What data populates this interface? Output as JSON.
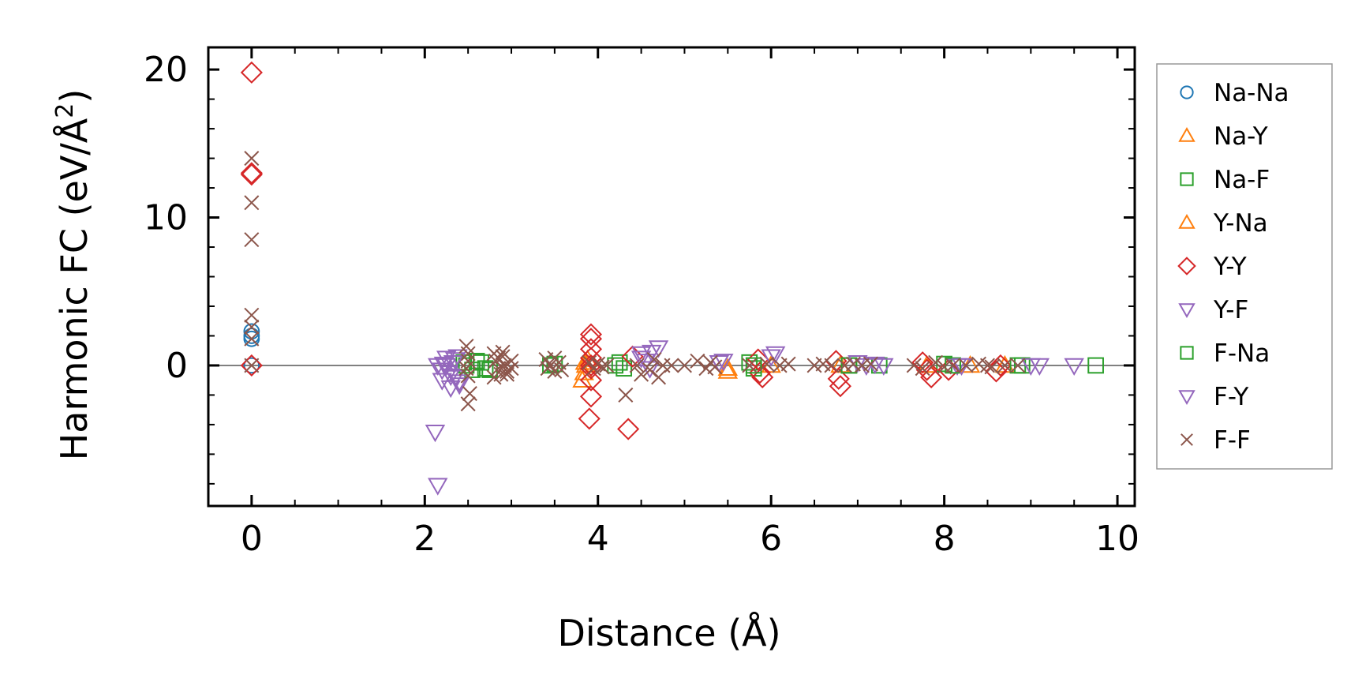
{
  "chart_data": {
    "type": "scatter",
    "xlabel": "Distance (Å)",
    "ylabel_main": "Harmonic FC (eV/Å",
    "ylabel_sup": "2",
    "ylabel_end": ")",
    "xlim": [
      -0.5,
      10.2
    ],
    "ylim": [
      -9.5,
      21.5
    ],
    "xticks": [
      0,
      2,
      4,
      6,
      8,
      10
    ],
    "xtick_labels": [
      "0",
      "2",
      "4",
      "6",
      "8",
      "10"
    ],
    "yticks": [
      0,
      10,
      20
    ],
    "ytick_labels": [
      "0",
      "10",
      "20"
    ],
    "x_minor_step": 0.5,
    "y_minor_step": 2,
    "zero_line": true,
    "grid": false,
    "legend_position": "outside-right",
    "series": [
      {
        "name": "Na-Na",
        "marker": "circle",
        "color": "#1f77b4",
        "x": [
          0,
          0,
          0,
          0
        ],
        "y": [
          2.3,
          1.8,
          2.0,
          0.0
        ]
      },
      {
        "name": "Na-Y",
        "marker": "triangle-up",
        "color": "#ff7f0e",
        "x": [
          3.82,
          3.84,
          3.86,
          3.88,
          5.5,
          6.8,
          7.8,
          8.7
        ],
        "y": [
          -1.0,
          -0.5,
          0.0,
          0.4,
          -0.4,
          0.0,
          0.0,
          0.0
        ]
      },
      {
        "name": "Na-F",
        "marker": "square",
        "color": "#2ca02c",
        "x": [
          2.45,
          2.55,
          2.65,
          2.7,
          3.5,
          4.25,
          4.3,
          5.75,
          5.8,
          6.9,
          7.25,
          8.0,
          8.9,
          9.75
        ],
        "y": [
          0.2,
          -0.3,
          0.2,
          -0.2,
          0.1,
          0.2,
          -0.2,
          0.2,
          -0.2,
          0.0,
          0.0,
          0.1,
          0.0,
          0.0
        ]
      },
      {
        "name": "Y-Na",
        "marker": "triangle-up",
        "color": "#ff7f0e",
        "x": [
          3.85,
          5.5,
          6.0,
          8.3
        ],
        "y": [
          0.2,
          -0.2,
          0.0,
          0.0
        ]
      },
      {
        "name": "Y-Y",
        "marker": "diamond",
        "color": "#d62728",
        "x": [
          0,
          0,
          0,
          0,
          3.92,
          3.92,
          3.92,
          3.92,
          3.92,
          3.92,
          3.92,
          3.92,
          3.9,
          4.35,
          4.4,
          5.85,
          5.9,
          5.87,
          6.75,
          6.78,
          6.8,
          7.75,
          7.8,
          7.85,
          8.05,
          8.65,
          8.6
        ],
        "y": [
          19.8,
          13.0,
          12.9,
          0.0,
          2.1,
          1.8,
          1.1,
          0.5,
          0.0,
          -0.2,
          -1.0,
          -2.1,
          -3.6,
          -4.3,
          0.6,
          0.4,
          -0.8,
          -0.5,
          0.3,
          -0.9,
          -1.4,
          0.2,
          -0.3,
          -0.8,
          -0.3,
          0.0,
          -0.4
        ]
      },
      {
        "name": "Y-F",
        "marker": "triangle-down",
        "color": "#9467bd",
        "x": [
          2.12,
          2.15,
          2.2,
          2.25,
          2.28,
          2.3,
          2.33,
          2.35,
          2.38,
          2.4,
          2.2,
          2.25,
          4.5,
          4.55,
          4.6,
          4.7,
          5.4,
          6.05,
          7.1,
          7.3,
          8.15,
          9.1,
          9.5
        ],
        "y": [
          -4.5,
          0.0,
          -1.0,
          0.5,
          -0.5,
          -1.5,
          0.2,
          -0.8,
          0.6,
          -1.3,
          -0.3,
          0.0,
          0.8,
          0.3,
          -0.2,
          1.2,
          0.2,
          0.8,
          0.0,
          0.0,
          0.0,
          0.0,
          0.0
        ]
      },
      {
        "name": "F-Na",
        "marker": "square",
        "color": "#2ca02c",
        "x": [
          2.48,
          2.6,
          2.75,
          3.45,
          4.2,
          5.8,
          6.9,
          8.1,
          8.85
        ],
        "y": [
          0.0,
          0.3,
          -0.3,
          0.0,
          0.0,
          0.0,
          0.0,
          0.0,
          0.0
        ]
      },
      {
        "name": "F-Y",
        "marker": "triangle-down",
        "color": "#9467bd",
        "x": [
          2.15,
          2.22,
          2.3,
          2.35,
          2.4,
          4.5,
          4.62,
          5.45,
          6.0,
          7.0,
          7.2,
          8.2,
          9.0
        ],
        "y": [
          -8.1,
          0.1,
          -0.7,
          0.4,
          -1.1,
          0.5,
          0.9,
          0.3,
          0.6,
          0.2,
          0.1,
          0.0,
          0.0
        ]
      },
      {
        "name": "F-F",
        "marker": "x",
        "color": "#8c564b",
        "x": [
          0,
          0,
          0,
          0,
          0,
          0,
          0,
          2.48,
          2.5,
          2.5,
          2.48,
          2.5,
          2.52,
          2.5,
          2.8,
          2.82,
          2.85,
          2.88,
          2.9,
          2.92,
          2.95,
          3.0,
          2.8,
          2.9,
          3.0,
          2.85,
          2.95,
          3.4,
          3.45,
          3.5,
          3.55,
          3.42,
          3.5,
          3.58,
          3.9,
          3.95,
          4.0,
          4.05,
          4.1,
          4.32,
          4.45,
          4.5,
          4.6,
          4.65,
          4.7,
          4.75,
          4.85,
          5.0,
          5.15,
          5.25,
          5.3,
          5.35,
          5.75,
          5.95,
          6.1,
          6.2,
          6.5,
          6.6,
          6.7,
          6.85,
          6.95,
          7.05,
          7.15,
          7.65,
          7.75,
          7.9,
          8.0,
          8.1,
          8.25,
          8.4,
          8.5,
          8.55,
          8.7,
          8.85
        ],
        "y": [
          14.0,
          11.0,
          8.5,
          3.4,
          2.6,
          1.8,
          0.0,
          1.3,
          0.8,
          0.3,
          -0.2,
          -0.7,
          -1.9,
          -2.6,
          0.8,
          0.3,
          -0.2,
          -0.6,
          0.6,
          0.0,
          -0.4,
          0.3,
          -0.8,
          0.9,
          -0.2,
          0.5,
          -0.6,
          0.4,
          0.0,
          -0.4,
          0.2,
          -0.2,
          0.5,
          -0.3,
          0.2,
          -0.2,
          0.1,
          -0.1,
          0.0,
          -2.0,
          0.0,
          -0.6,
          -0.3,
          0.4,
          -0.8,
          0.0,
          0.0,
          0.0,
          0.3,
          -0.2,
          0.2,
          -0.1,
          0.0,
          0.1,
          0.0,
          0.1,
          0.0,
          0.1,
          0.0,
          0.0,
          0.1,
          0.0,
          0.1,
          0.0,
          -0.2,
          0.2,
          -0.1,
          0.0,
          0.0,
          0.1,
          0.0,
          -0.1,
          0.0,
          0.0
        ]
      }
    ]
  }
}
